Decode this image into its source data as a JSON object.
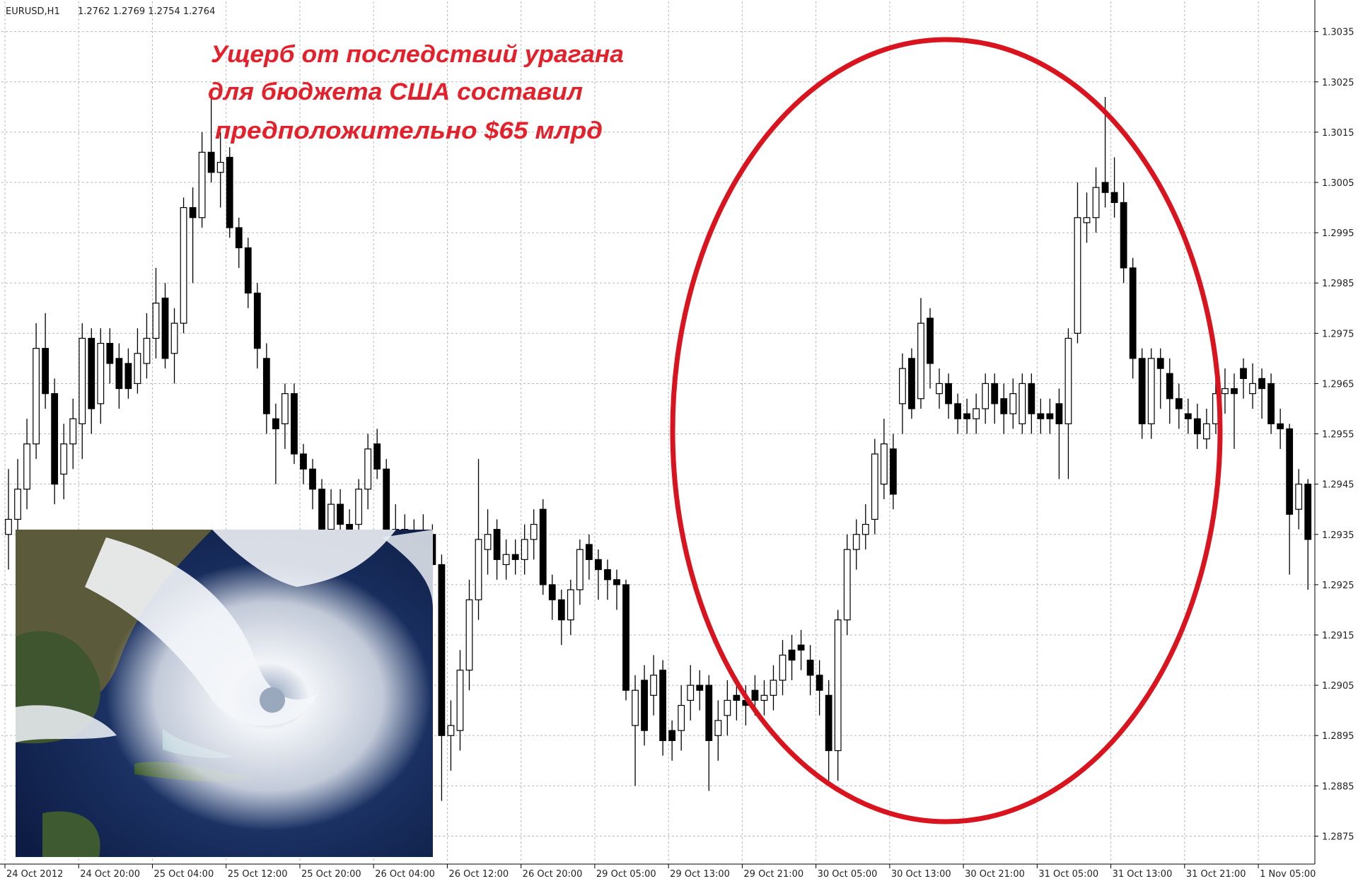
{
  "header": {
    "symbol": "EURUSD,H1",
    "quote": "1.2762 1.2769 1.2754 1.2764"
  },
  "chart_data": {
    "type": "candlestick",
    "annotations": [
      "Ущерб от последствий урагана",
      "для бюджета США составил",
      "предположительно $65 млрд"
    ],
    "bull_color": "#ffffff",
    "bear_color": "#000000",
    "grid": true,
    "ylim": [
      1.287,
      1.3041
    ],
    "yticks": [
      1.3035,
      1.3025,
      1.3015,
      1.3005,
      1.2995,
      1.2985,
      1.2975,
      1.2965,
      1.2955,
      1.2945,
      1.2935,
      1.2925,
      1.2915,
      1.2905,
      1.2895,
      1.2885,
      1.2875
    ],
    "xticks": [
      {
        "value": 0,
        "label": "24 Oct 2012"
      },
      {
        "value": 8,
        "label": "24 Oct 20:00"
      },
      {
        "value": 16,
        "label": "25 Oct 04:00"
      },
      {
        "value": 24,
        "label": "25 Oct 12:00"
      },
      {
        "value": 32,
        "label": "25 Oct 20:00"
      },
      {
        "value": 40,
        "label": "26 Oct 04:00"
      },
      {
        "value": 48,
        "label": "26 Oct 12:00"
      },
      {
        "value": 56,
        "label": "26 Oct 20:00"
      },
      {
        "value": 64,
        "label": "29 Oct 05:00"
      },
      {
        "value": 72,
        "label": "29 Oct 13:00"
      },
      {
        "value": 80,
        "label": "29 Oct 21:00"
      },
      {
        "value": 88,
        "label": "30 Oct 05:00"
      },
      {
        "value": 96,
        "label": "30 Oct 13:00"
      },
      {
        "value": 104,
        "label": "30 Oct 21:00"
      },
      {
        "value": 112,
        "label": "31 Oct 05:00"
      },
      {
        "value": 120,
        "label": "31 Oct 13:00"
      },
      {
        "value": 128,
        "label": "31 Oct 21:00"
      },
      {
        "value": 136,
        "label": "1 Nov 05:00"
      }
    ],
    "open": [
      1.2935,
      1.2938,
      1.2944,
      1.2953,
      1.2972,
      1.2963,
      1.2947,
      1.2953,
      1.2957,
      1.2974,
      1.2961,
      1.2973,
      1.297,
      1.2969,
      1.2965,
      1.2969,
      1.2974,
      1.2982,
      1.2971,
      1.2977,
      1.3,
      1.2998,
      1.3011,
      1.3007,
      1.301,
      1.2996,
      1.2992,
      1.2983,
      1.297,
      1.2958,
      1.2957,
      1.2963,
      1.2951,
      1.2948,
      1.2944,
      1.2936,
      1.2941,
      1.2937,
      1.2937,
      1.2944,
      1.2953,
      1.2948,
      1.2934,
      1.2936,
      1.2934,
      1.2933,
      1.2935,
      1.2929,
      1.2895,
      1.2896,
      1.2908,
      1.2922,
      1.2932,
      1.2936,
      1.2929,
      1.2931,
      1.293,
      1.2934,
      1.294,
      1.2925,
      1.2922,
      1.2918,
      1.2924,
      1.2933,
      1.293,
      1.2928,
      1.2926,
      1.2925,
      1.2897,
      1.2906,
      1.2903,
      1.2908,
      1.2896,
      1.2896,
      1.2902,
      1.2905,
      1.2905,
      1.2895,
      1.2899,
      1.2903,
      1.2902,
      1.2904,
      1.2902,
      1.2903,
      1.2906,
      1.2912,
      1.2913,
      1.291,
      1.2907,
      1.2903,
      1.2892,
      1.2918,
      1.2932,
      1.2935,
      1.2938,
      1.2945,
      1.2952,
      1.2961,
      1.297,
      1.2962,
      1.2978,
      1.2963,
      1.2965,
      1.2961,
      1.2959,
      1.2958,
      1.296,
      1.2965,
      1.2962,
      1.2959,
      1.2957,
      1.2965,
      1.2959,
      1.2959,
      1.2961,
      1.2957,
      1.2975,
      1.2997,
      1.2998,
      1.3005,
      1.3003,
      1.3001,
      1.2988,
      1.297,
      1.2957,
      1.297,
      1.2967,
      1.2962,
      1.2959,
      1.2958,
      1.2954,
      1.2957,
      1.2963,
      1.2964,
      1.2968,
      1.2963,
      1.2966,
      1.2965,
      1.2957,
      1.2956,
      1.294,
      1.2945
    ],
    "high": [
      1.2948,
      1.295,
      1.2958,
      1.2977,
      1.2979,
      1.2966,
      1.2957,
      1.2962,
      1.2977,
      1.2976,
      1.2976,
      1.2976,
      1.2973,
      1.2972,
      1.2976,
      1.2979,
      1.2988,
      1.2985,
      1.298,
      1.3002,
      1.3004,
      1.3015,
      1.3022,
      1.3015,
      1.3012,
      1.2998,
      1.2994,
      1.2985,
      1.2973,
      1.2961,
      1.2965,
      1.2965,
      1.2953,
      1.295,
      1.2946,
      1.2944,
      1.2944,
      1.294,
      1.2946,
      1.2955,
      1.2956,
      1.295,
      1.2941,
      1.2939,
      1.2938,
      1.2939,
      1.2937,
      1.2931,
      1.2902,
      1.2912,
      1.2926,
      1.295,
      1.294,
      1.2938,
      1.2934,
      1.2934,
      1.2937,
      1.294,
      1.2942,
      1.2927,
      1.2924,
      1.2926,
      1.2934,
      1.2935,
      1.2932,
      1.293,
      1.2928,
      1.2926,
      1.2907,
      1.2909,
      1.2911,
      1.291,
      1.2898,
      1.2905,
      1.2909,
      1.2908,
      1.2907,
      1.2902,
      1.2906,
      1.2906,
      1.2905,
      1.2907,
      1.2906,
      1.2909,
      1.2914,
      1.2915,
      1.2916,
      1.2913,
      1.291,
      1.2906,
      1.292,
      1.2935,
      1.2938,
      1.2941,
      1.2954,
      1.2958,
      1.2955,
      1.2971,
      1.2972,
      1.2982,
      1.298,
      1.2968,
      1.2967,
      1.2963,
      1.2962,
      1.2963,
      1.2967,
      1.2967,
      1.2965,
      1.2966,
      1.2967,
      1.2967,
      1.2962,
      1.2962,
      1.2964,
      1.2976,
      1.3005,
      1.3003,
      1.3008,
      1.3022,
      1.301,
      1.3005,
      1.299,
      1.2972,
      1.2972,
      1.2972,
      1.297,
      1.2965,
      1.2962,
      1.2961,
      1.296,
      1.2966,
      1.2968,
      1.2967,
      1.297,
      1.2969,
      1.2968,
      1.2967,
      1.296,
      1.2957,
      1.2948,
      1.2946
    ],
    "low": [
      1.2928,
      1.2935,
      1.294,
      1.295,
      1.296,
      1.2941,
      1.2942,
      1.2948,
      1.295,
      1.2955,
      1.2957,
      1.2965,
      1.296,
      1.2962,
      1.2963,
      1.2966,
      1.297,
      1.2968,
      1.2965,
      1.2975,
      1.2985,
      1.2996,
      1.3005,
      1.3,
      1.2994,
      1.2988,
      1.298,
      1.2968,
      1.2955,
      1.2945,
      1.2952,
      1.2949,
      1.2945,
      1.294,
      1.2932,
      1.2933,
      1.2934,
      1.2933,
      1.2935,
      1.294,
      1.2946,
      1.293,
      1.2931,
      1.293,
      1.2929,
      1.293,
      1.2926,
      1.2882,
      1.2888,
      1.2892,
      1.2904,
      1.2918,
      1.2927,
      1.2926,
      1.2926,
      1.2927,
      1.2927,
      1.293,
      1.2923,
      1.2918,
      1.2913,
      1.2915,
      1.2921,
      1.2926,
      1.2922,
      1.2922,
      1.292,
      1.2902,
      1.2885,
      1.2893,
      1.2899,
      1.2891,
      1.289,
      1.2892,
      1.2898,
      1.29,
      1.2884,
      1.289,
      1.2895,
      1.2898,
      1.2897,
      1.2899,
      1.2899,
      1.29,
      1.2903,
      1.2906,
      1.2908,
      1.2903,
      1.2899,
      1.2886,
      1.2886,
      1.2915,
      1.2928,
      1.2932,
      1.2935,
      1.2942,
      1.294,
      1.2955,
      1.2958,
      1.296,
      1.2964,
      1.296,
      1.2958,
      1.2955,
      1.2955,
      1.2955,
      1.2957,
      1.2957,
      1.2955,
      1.2956,
      1.2955,
      1.2955,
      1.2955,
      1.2955,
      1.2946,
      1.2946,
      1.2973,
      1.2993,
      1.2995,
      1.3,
      1.2998,
      1.2985,
      1.2966,
      1.2954,
      1.2954,
      1.296,
      1.2957,
      1.2956,
      1.2955,
      1.2952,
      1.2952,
      1.2955,
      1.2959,
      1.2952,
      1.2962,
      1.296,
      1.2958,
      1.2955,
      1.2952,
      1.2927,
      1.2936,
      1.2924
    ],
    "close": [
      1.2938,
      1.2944,
      1.2953,
      1.2972,
      1.2963,
      1.2945,
      1.2953,
      1.2958,
      1.2974,
      1.296,
      1.2973,
      1.2969,
      1.2964,
      1.2964,
      1.2971,
      1.2974,
      1.2981,
      1.297,
      1.2977,
      1.3,
      1.2998,
      1.3011,
      1.3007,
      1.3009,
      1.2996,
      1.2992,
      1.2983,
      1.2972,
      1.2959,
      1.2956,
      1.2963,
      1.2951,
      1.2948,
      1.2944,
      1.2936,
      1.2941,
      1.2937,
      1.2936,
      1.2944,
      1.2952,
      1.2948,
      1.2934,
      1.2936,
      1.2934,
      1.2933,
      1.2935,
      1.2929,
      1.2895,
      1.2897,
      1.2908,
      1.2922,
      1.2934,
      1.2935,
      1.293,
      1.2931,
      1.293,
      1.2934,
      1.2937,
      1.2925,
      1.2922,
      1.2918,
      1.2924,
      1.2932,
      1.293,
      1.2928,
      1.2926,
      1.2925,
      1.2904,
      1.2904,
      1.2896,
      1.2907,
      1.2894,
      1.2894,
      1.2901,
      1.2905,
      1.2904,
      1.2894,
      1.2898,
      1.2902,
      1.2902,
      1.2901,
      1.2902,
      1.2903,
      1.2906,
      1.2911,
      1.291,
      1.2912,
      1.2907,
      1.2904,
      1.2892,
      1.2918,
      1.2932,
      1.2935,
      1.2937,
      1.2951,
      1.2953,
      1.2943,
      1.2968,
      1.296,
      1.2977,
      1.2969,
      1.2965,
      1.2961,
      1.2958,
      1.2958,
      1.296,
      1.2965,
      1.2961,
      1.2959,
      1.2963,
      1.2965,
      1.2959,
      1.2958,
      1.2958,
      1.2957,
      1.2974,
      1.2998,
      1.2998,
      1.3004,
      1.3003,
      1.3001,
      1.2988,
      1.297,
      1.2957,
      1.297,
      1.2968,
      1.2962,
      1.296,
      1.2958,
      1.2955,
      1.2957,
      1.2963,
      1.2964,
      1.2963,
      1.2966,
      1.2965,
      1.2964,
      1.2957,
      1.2956,
      1.2939,
      1.2945,
      1.2934
    ]
  }
}
